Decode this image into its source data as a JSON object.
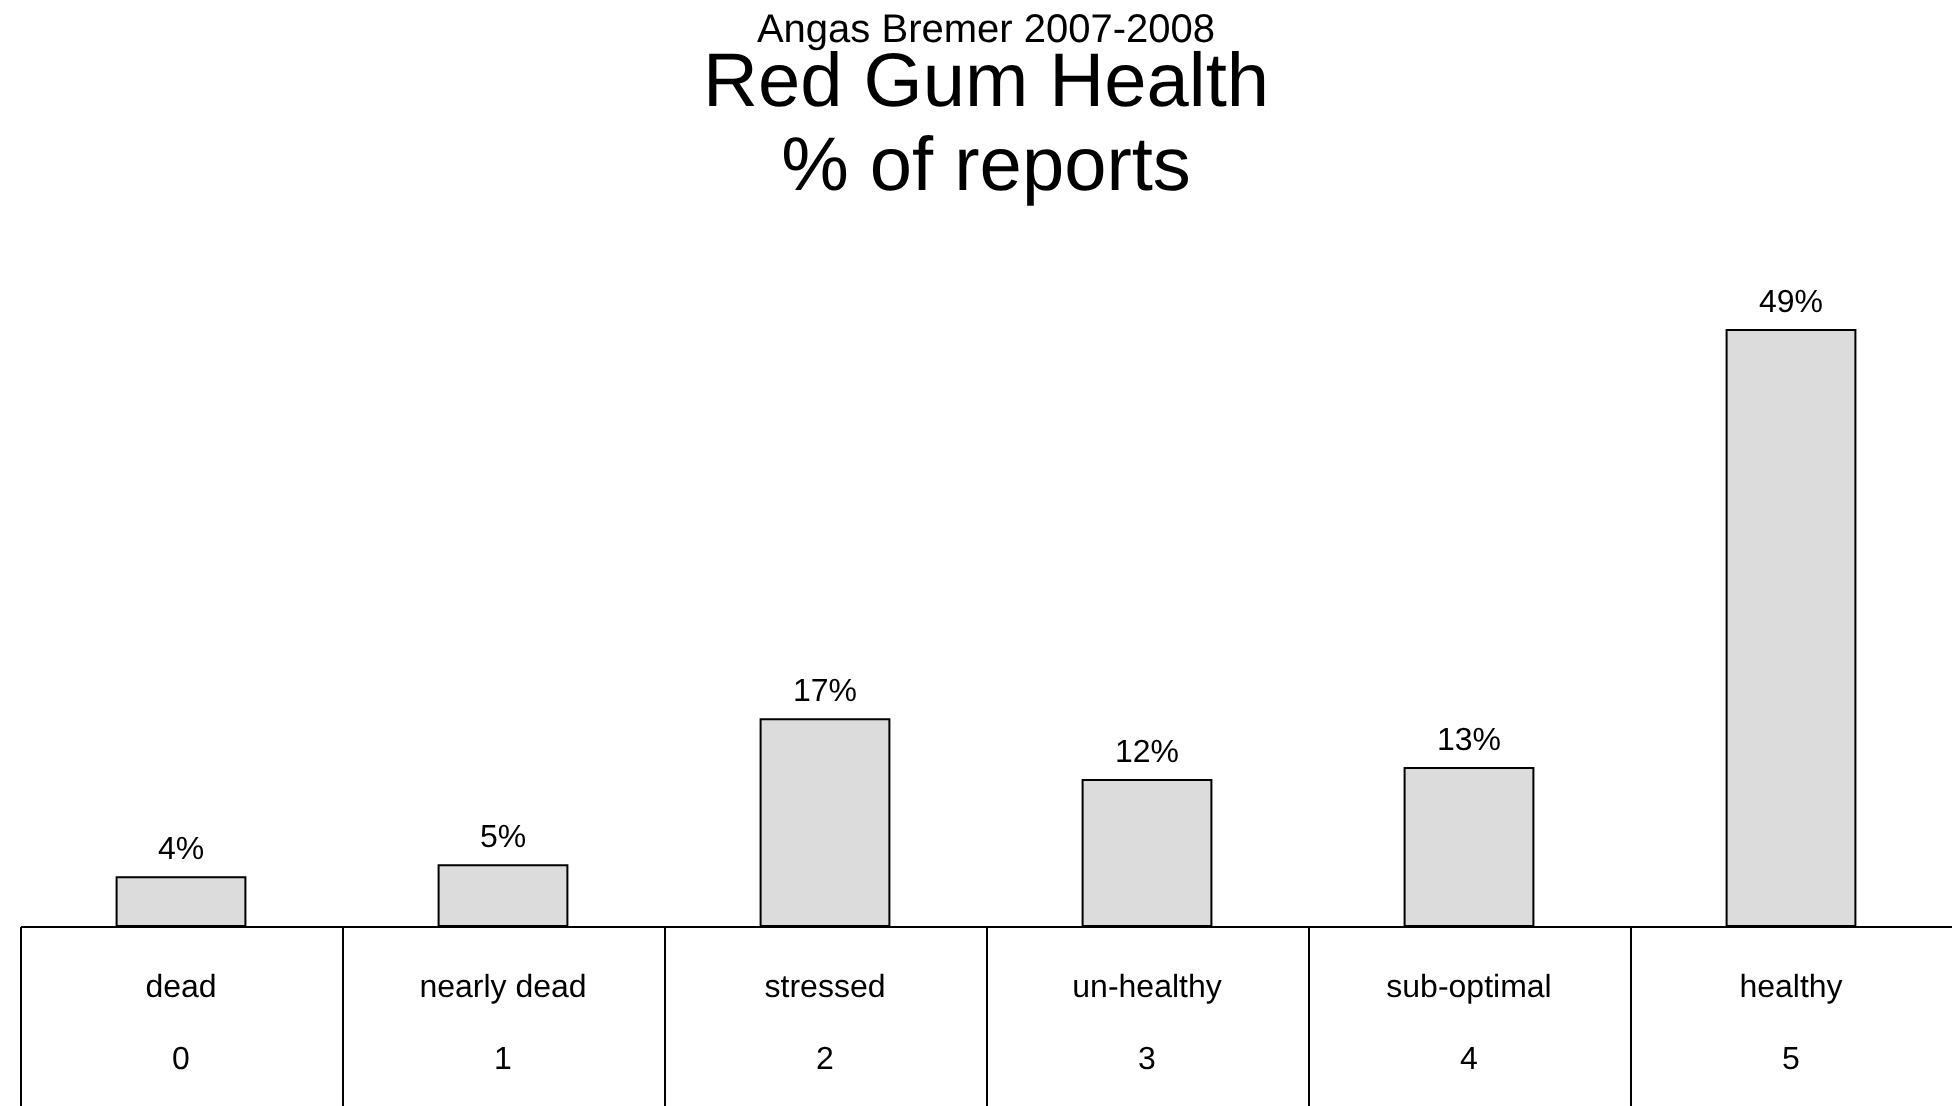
{
  "chart_data": {
    "type": "bar",
    "title": "Red Gum Health\n% of reports",
    "subtitle": "Angas Bremer 2007-2008",
    "categories": [
      "dead\n0",
      "nearly dead\n1",
      "stressed\n2",
      "un-healthy\n3",
      "sub-optimal\n4",
      "healthy\n5"
    ],
    "values": [
      4,
      5,
      17,
      12,
      13,
      49
    ],
    "value_labels": [
      "4%",
      "5%",
      "17%",
      "12%",
      "13%",
      "49%"
    ],
    "color": "#dcdcdc"
  }
}
